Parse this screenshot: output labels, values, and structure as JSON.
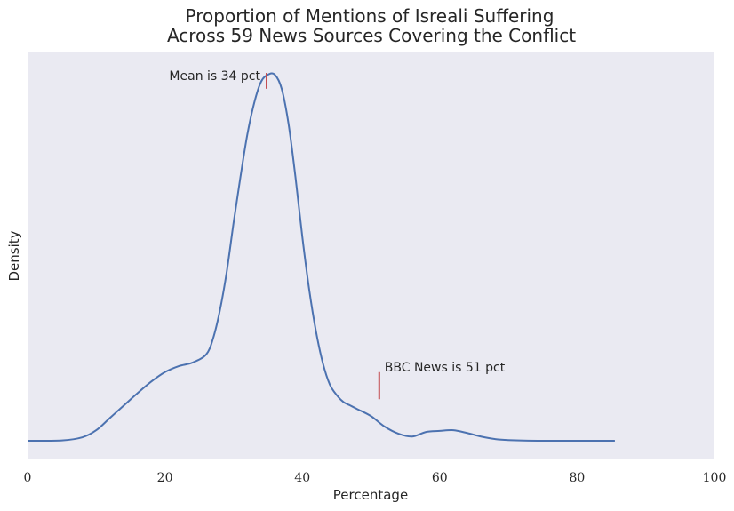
{
  "chart_data": {
    "type": "line",
    "title_line1": "Proportion of Mentions of Isreali Suffering",
    "title_line2": "Across 59 News Sources Covering the Conflict",
    "xlabel": "Percentage",
    "ylabel": "Density",
    "xlim": [
      0,
      100
    ],
    "ylim": [
      0,
      1.05
    ],
    "grid": false,
    "x_ticks": [
      "0",
      "20",
      "40",
      "60",
      "80",
      "100"
    ],
    "x_tick_values": [
      0,
      20,
      40,
      60,
      80,
      100
    ],
    "series": [
      {
        "color": "#4c72b0",
        "x": [
          0,
          5,
          8,
          10,
          12,
          14,
          16,
          18,
          20,
          22,
          24,
          26,
          27,
          28,
          29,
          30,
          31,
          32,
          33,
          34,
          35,
          36,
          37,
          38,
          39,
          40,
          41,
          42,
          43,
          44,
          45,
          46,
          47,
          48,
          50,
          52,
          54,
          56,
          58,
          60,
          62,
          64,
          66,
          68,
          70,
          75,
          80,
          85.5
        ],
        "y": [
          0,
          0.001,
          0.01,
          0.03,
          0.065,
          0.1,
          0.135,
          0.168,
          0.195,
          0.212,
          0.222,
          0.245,
          0.29,
          0.37,
          0.48,
          0.62,
          0.75,
          0.87,
          0.96,
          1.02,
          1.04,
          1.04,
          1.0,
          0.9,
          0.75,
          0.58,
          0.43,
          0.31,
          0.22,
          0.16,
          0.13,
          0.11,
          0.1,
          0.09,
          0.07,
          0.04,
          0.02,
          0.012,
          0.025,
          0.028,
          0.03,
          0.022,
          0.012,
          0.005,
          0.002,
          0.0,
          0.0,
          0.0
        ]
      }
    ],
    "annotations": [
      {
        "text": "Mean is 34 pct",
        "x": 34.8,
        "y_bottom": 1.0,
        "y_top": 1.045,
        "text_anchor": "end",
        "color": "#c44e52"
      },
      {
        "text": "BBC News is 51 pct",
        "x": 51.2,
        "y_bottom": 0.118,
        "y_top": 0.195,
        "text_anchor": "start",
        "color": "#c44e52"
      }
    ],
    "colors": {
      "plot_background": "#eaeaf2",
      "line": "#4c72b0",
      "marker": "#c44e52"
    }
  }
}
